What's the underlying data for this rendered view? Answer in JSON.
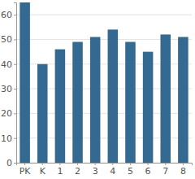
{
  "chart_data": {
    "type": "bar",
    "categories": [
      "PK",
      "K",
      "1",
      "2",
      "3",
      "4",
      "5",
      "6",
      "7",
      "8"
    ],
    "values": [
      65,
      40,
      46,
      49,
      51,
      54,
      49,
      45,
      52,
      51
    ],
    "color": "#346a92",
    "ylim": [
      0,
      65
    ],
    "yticks": [
      0,
      10,
      20,
      30,
      40,
      50,
      60
    ],
    "grid": true
  }
}
